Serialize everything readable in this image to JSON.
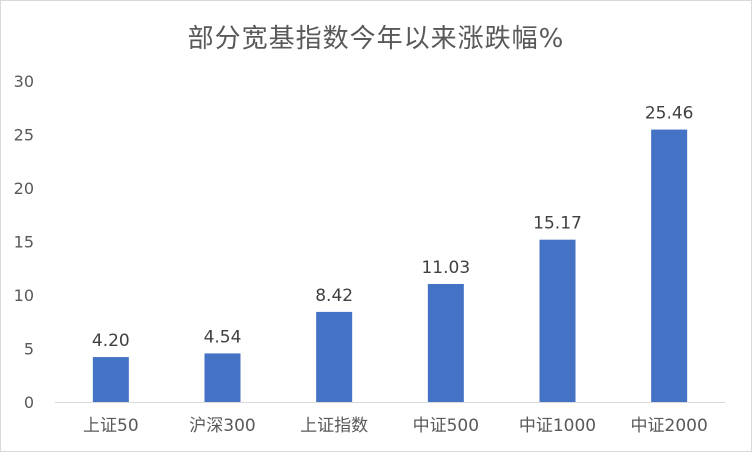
{
  "chart_data": {
    "type": "bar",
    "title": "部分宽基指数今年以来涨跌幅%",
    "categories": [
      "上证50",
      "沪深300",
      "上证指数",
      "中证500",
      "中证1000",
      "中证2000"
    ],
    "values": [
      4.2,
      4.54,
      8.42,
      11.03,
      15.17,
      25.46
    ],
    "value_labels": [
      "4.20",
      "4.54",
      "8.42",
      "11.03",
      "15.17",
      "25.46"
    ],
    "ylim": [
      0,
      30
    ],
    "yticks": [
      "0",
      "5",
      "10",
      "15",
      "20",
      "25",
      "30"
    ],
    "grid": false,
    "legend": "none",
    "bar_color": "#4472C4",
    "axis_color": "#d9d9d9"
  }
}
